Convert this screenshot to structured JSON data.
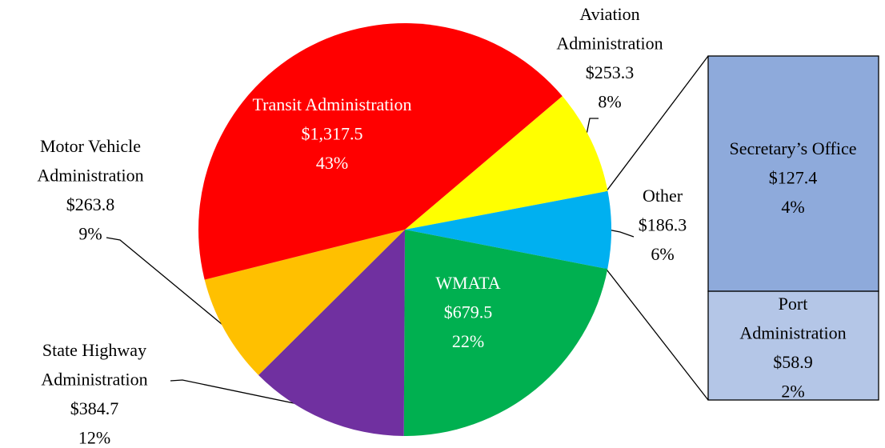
{
  "chart_data": {
    "type": "pie",
    "categories": [
      "Aviation Administration",
      "Other",
      "WMATA",
      "State Highway Administration",
      "Motor Vehicle Administration",
      "Transit Administration"
    ],
    "values": [
      253.3,
      186.3,
      679.5,
      384.7,
      263.8,
      1317.5
    ],
    "value_labels": [
      "$253.3",
      "$186.3",
      "$679.5",
      "$384.7",
      "$263.8",
      "$1,317.5"
    ],
    "percents": [
      8,
      6,
      22,
      12,
      9,
      43
    ],
    "percent_labels": [
      "8%",
      "6%",
      "22%",
      "12%",
      "9%",
      "43%"
    ],
    "colors": [
      "#ffff00",
      "#00b0f0",
      "#00b050",
      "#7030a0",
      "#ffc000",
      "#ff0000"
    ],
    "breakdown": {
      "type": "bar",
      "categories": [
        "Secretary’s Office",
        "Port Administration"
      ],
      "values": [
        127.4,
        58.9
      ],
      "value_labels": [
        "$127.4",
        "$58.9"
      ],
      "percents": [
        4,
        2
      ],
      "percent_labels": [
        "4%",
        "2%"
      ],
      "colors": [
        "#8eaadb",
        "#b4c6e7"
      ]
    }
  }
}
